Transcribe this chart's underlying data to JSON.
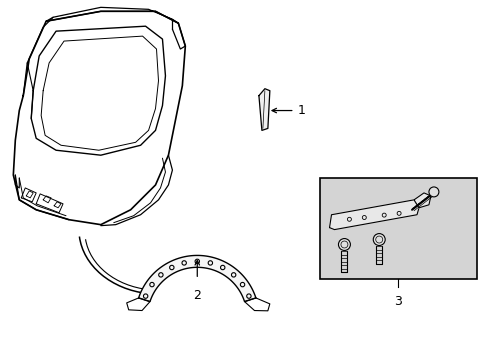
{
  "bg_color": "#ffffff",
  "line_color": "#000000",
  "box_bg_color": "#d4d4d4",
  "label1": "1",
  "label2": "2",
  "label3": "3",
  "fig_width": 4.89,
  "fig_height": 3.6,
  "dpi": 100
}
